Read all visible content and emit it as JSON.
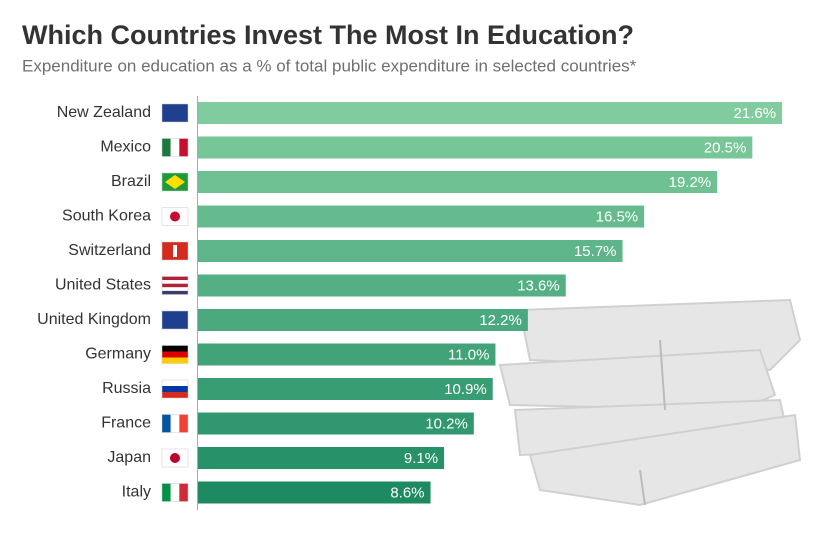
{
  "chart_data": {
    "type": "bar",
    "orientation": "horizontal",
    "title": "Which Countries Invest The Most In Education?",
    "subtitle": "Expenditure on education as a % of total public expenditure in selected countries*",
    "categories": [
      "New Zealand",
      "Mexico",
      "Brazil",
      "South Korea",
      "Switzerland",
      "United States",
      "United Kingdom",
      "Germany",
      "Russia",
      "France",
      "Japan",
      "Italy"
    ],
    "values": [
      21.6,
      20.5,
      19.2,
      16.5,
      15.7,
      13.6,
      12.2,
      11.0,
      10.9,
      10.2,
      9.1,
      8.6
    ],
    "value_labels": [
      "21.6%",
      "20.5%",
      "19.2%",
      "16.5%",
      "15.7%",
      "13.6%",
      "12.2%",
      "11.0%",
      "10.9%",
      "10.2%",
      "9.1%",
      "8.6%"
    ],
    "colors": [
      "#80cc9e",
      "#77c698",
      "#6fc193",
      "#66bb8e",
      "#5db589",
      "#54af84",
      "#4ba97f",
      "#42a379",
      "#399d74",
      "#30976e",
      "#279168",
      "#1e8a62"
    ]
  }
}
